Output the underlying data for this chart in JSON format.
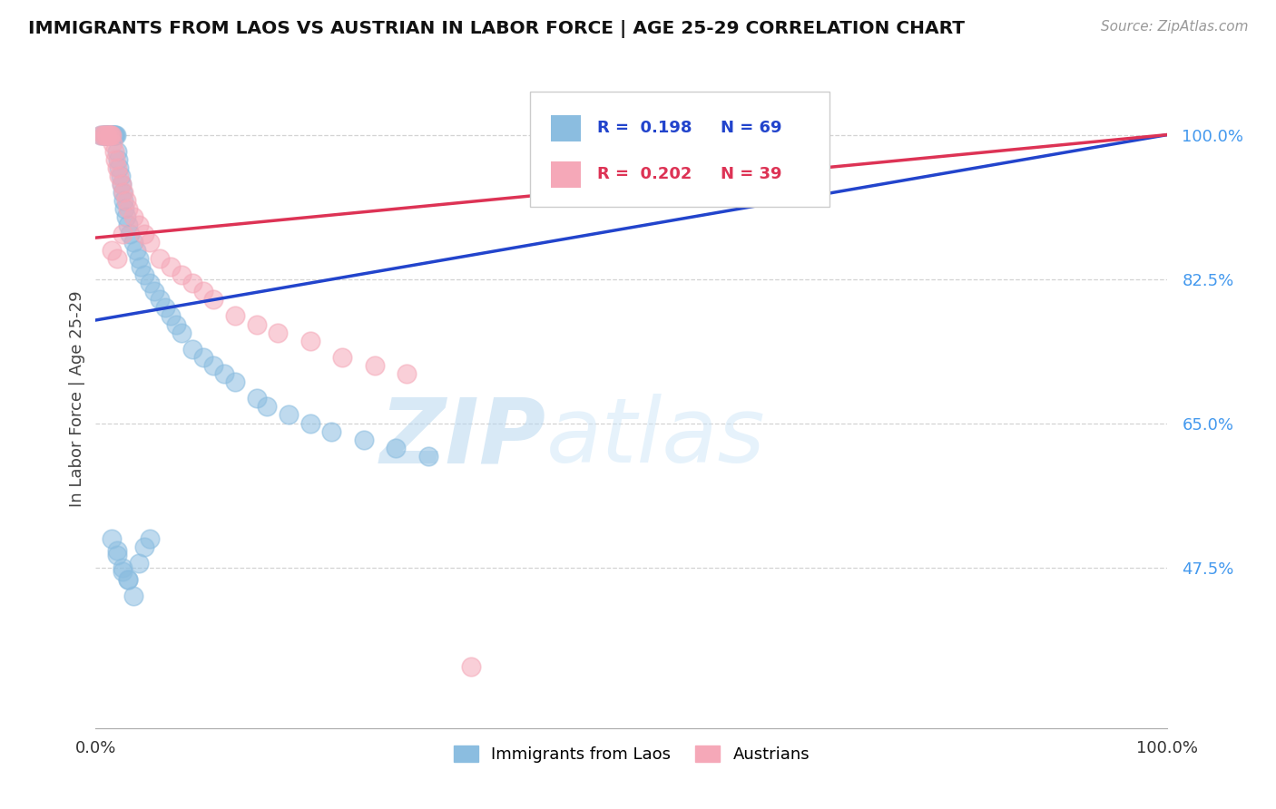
{
  "title": "IMMIGRANTS FROM LAOS VS AUSTRIAN IN LABOR FORCE | AGE 25-29 CORRELATION CHART",
  "source_text": "Source: ZipAtlas.com",
  "ylabel": "In Labor Force | Age 25-29",
  "legend_labels": [
    "Immigrants from Laos",
    "Austrians"
  ],
  "r_blue": 0.198,
  "n_blue": 69,
  "r_pink": 0.202,
  "n_pink": 39,
  "blue_color": "#8bbde0",
  "pink_color": "#f5a8b8",
  "blue_line_color": "#2244cc",
  "pink_line_color": "#dd3355",
  "xmin": 0.0,
  "xmax": 1.0,
  "ymin": 0.28,
  "ymax": 1.08,
  "yticks": [
    0.475,
    0.65,
    0.825,
    1.0
  ],
  "ytick_labels": [
    "47.5%",
    "65.0%",
    "82.5%",
    "100.0%"
  ],
  "blue_line_x0": 0.0,
  "blue_line_y0": 0.775,
  "blue_line_x1": 1.0,
  "blue_line_y1": 1.0,
  "pink_line_x0": 0.0,
  "pink_line_y0": 0.875,
  "pink_line_x1": 1.0,
  "pink_line_y1": 1.0,
  "blue_x": [
    0.005,
    0.007,
    0.008,
    0.009,
    0.01,
    0.01,
    0.011,
    0.011,
    0.012,
    0.012,
    0.013,
    0.013,
    0.014,
    0.014,
    0.015,
    0.015,
    0.016,
    0.016,
    0.017,
    0.017,
    0.018,
    0.019,
    0.02,
    0.021,
    0.022,
    0.023,
    0.024,
    0.025,
    0.026,
    0.027,
    0.028,
    0.03,
    0.032,
    0.035,
    0.038,
    0.04,
    0.042,
    0.045,
    0.05,
    0.055,
    0.06,
    0.065,
    0.07,
    0.075,
    0.08,
    0.09,
    0.1,
    0.11,
    0.12,
    0.13,
    0.15,
    0.16,
    0.18,
    0.2,
    0.22,
    0.25,
    0.28,
    0.31,
    0.02,
    0.025,
    0.03,
    0.035,
    0.04,
    0.045,
    0.05,
    0.015,
    0.02,
    0.025,
    0.03
  ],
  "blue_y": [
    1.0,
    1.0,
    1.0,
    1.0,
    1.0,
    1.0,
    1.0,
    1.0,
    1.0,
    1.0,
    1.0,
    1.0,
    1.0,
    1.0,
    1.0,
    1.0,
    1.0,
    1.0,
    1.0,
    1.0,
    1.0,
    1.0,
    0.98,
    0.97,
    0.96,
    0.95,
    0.94,
    0.93,
    0.92,
    0.91,
    0.9,
    0.89,
    0.88,
    0.87,
    0.86,
    0.85,
    0.84,
    0.83,
    0.82,
    0.81,
    0.8,
    0.79,
    0.78,
    0.77,
    0.76,
    0.74,
    0.73,
    0.72,
    0.71,
    0.7,
    0.68,
    0.67,
    0.66,
    0.65,
    0.64,
    0.63,
    0.62,
    0.61,
    0.495,
    0.475,
    0.46,
    0.44,
    0.48,
    0.5,
    0.51,
    0.51,
    0.49,
    0.47,
    0.46
  ],
  "pink_x": [
    0.005,
    0.007,
    0.008,
    0.01,
    0.011,
    0.012,
    0.013,
    0.014,
    0.015,
    0.016,
    0.017,
    0.018,
    0.02,
    0.022,
    0.024,
    0.026,
    0.028,
    0.03,
    0.035,
    0.04,
    0.045,
    0.05,
    0.06,
    0.07,
    0.08,
    0.09,
    0.1,
    0.11,
    0.13,
    0.15,
    0.17,
    0.2,
    0.23,
    0.26,
    0.29,
    0.015,
    0.02,
    0.35,
    0.025
  ],
  "pink_y": [
    1.0,
    1.0,
    1.0,
    1.0,
    1.0,
    1.0,
    1.0,
    1.0,
    1.0,
    0.99,
    0.98,
    0.97,
    0.96,
    0.95,
    0.94,
    0.93,
    0.92,
    0.91,
    0.9,
    0.89,
    0.88,
    0.87,
    0.85,
    0.84,
    0.83,
    0.82,
    0.81,
    0.8,
    0.78,
    0.77,
    0.76,
    0.75,
    0.73,
    0.72,
    0.71,
    0.86,
    0.85,
    0.355,
    0.88
  ],
  "watermark_zip": "ZIP",
  "watermark_atlas": "atlas",
  "background_color": "#ffffff",
  "grid_color": "#c8c8c8"
}
